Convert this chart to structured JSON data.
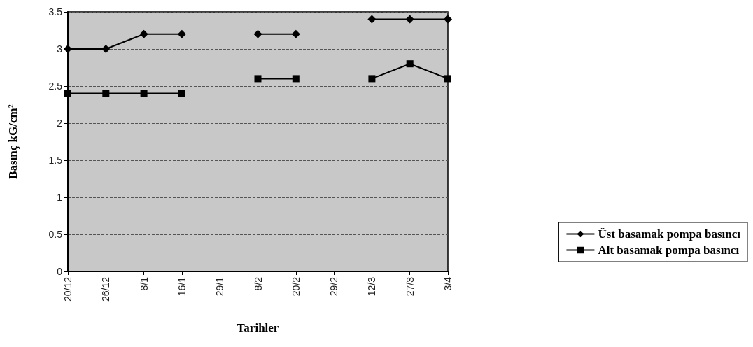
{
  "chart_data": {
    "type": "line",
    "xlabel": "Tarihler",
    "ylabel": "Basınç kG/cm²",
    "categories": [
      "20/12",
      "26/12",
      "8/1",
      "16/1",
      "29/1",
      "8/2",
      "20/2",
      "29/2",
      "12/3",
      "27/3",
      "3/4"
    ],
    "series": [
      {
        "name": "Üst basamak pompa basıncı",
        "color": "#000000",
        "marker": "diamond",
        "values": [
          3.0,
          3.0,
          3.2,
          3.2,
          null,
          3.2,
          3.2,
          null,
          3.4,
          3.4,
          3.4
        ]
      },
      {
        "name": "Alt basamak pompa basıncı",
        "color": "#000000",
        "marker": "square",
        "values": [
          2.4,
          2.4,
          2.4,
          2.4,
          null,
          2.6,
          2.6,
          null,
          2.6,
          2.8,
          2.6
        ]
      }
    ],
    "ylim": [
      0,
      3.5
    ],
    "yticks": [
      0,
      0.5,
      1,
      1.5,
      2,
      2.5,
      3,
      3.5
    ],
    "grid": "y",
    "legend": "right",
    "line_style": "solid"
  }
}
